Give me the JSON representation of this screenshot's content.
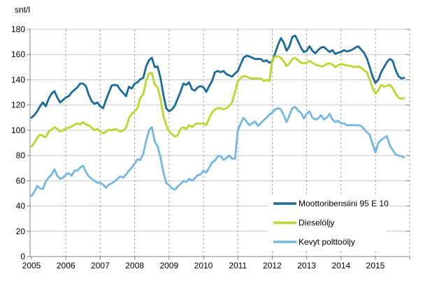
{
  "chart_data": {
    "type": "line",
    "title": "",
    "ylabel": "snt/l",
    "xlabel": "",
    "ylim": [
      0,
      180
    ],
    "ytick_step": 20,
    "x_start": "2005-01",
    "x_freq": "monthly",
    "x_tick_years": [
      2005,
      2006,
      2007,
      2008,
      2009,
      2010,
      2011,
      2012,
      2013,
      2014,
      2015
    ],
    "grid": {
      "horizontal": "solid",
      "vertical": "dashed-yearly"
    },
    "legend_position": "inside-bottom-right",
    "axis_color": "#808080",
    "hgrid_color": "#c9c9c9",
    "vgrid_color": "#a6a6a6",
    "series": [
      {
        "name": "Moottoribensiini 95 E 10",
        "color": "#176a99",
        "values": [
          110,
          112,
          115,
          119,
          122,
          119,
          125,
          129,
          131,
          126,
          122,
          124,
          126,
          127,
          130,
          132,
          134,
          137,
          137,
          135,
          128,
          123,
          121,
          122,
          119,
          117.5,
          124,
          130,
          135.5,
          136,
          135.5,
          132,
          129.5,
          127,
          134.5,
          133,
          137,
          138,
          140.5,
          141.5,
          150.5,
          155.5,
          157.5,
          150,
          150.5,
          141.5,
          128.5,
          117.5,
          115,
          116.5,
          119.5,
          125,
          130.5,
          137,
          136,
          138,
          132.5,
          131.5,
          134,
          135,
          134,
          130.5,
          135,
          139,
          146,
          147,
          146,
          147,
          144.5,
          143.5,
          142.5,
          145,
          147,
          152.5,
          157.5,
          159,
          158.5,
          157.5,
          156.5,
          156.5,
          156.5,
          154.5,
          155.5,
          153.5,
          154.5,
          161,
          167.5,
          173,
          169.5,
          163,
          166.5,
          174,
          175,
          170.5,
          165.5,
          162,
          163,
          166.5,
          163,
          161,
          163.5,
          165.5,
          166,
          164,
          162,
          163.5,
          160.5,
          161.5,
          162,
          163.5,
          162.5,
          163,
          164,
          165.5,
          166.5,
          164,
          161.5,
          157,
          150,
          142.5,
          137.5,
          140,
          146,
          150,
          154,
          156.5,
          155,
          148,
          143,
          141,
          141.5
        ]
      },
      {
        "name": "Dieselöljy",
        "color": "#bdd62e",
        "values": [
          87,
          90,
          94,
          96.5,
          95.5,
          94.5,
          99,
          100.5,
          102.5,
          101,
          99,
          100,
          101.5,
          102,
          103,
          104.5,
          105.5,
          104.5,
          106.5,
          104.5,
          104,
          102,
          100,
          101,
          99,
          97.5,
          99,
          100.5,
          100,
          101,
          100.5,
          99,
          100,
          102,
          109.5,
          113,
          115,
          117.5,
          126,
          128.5,
          139,
          145,
          145.5,
          136,
          134,
          125,
          112,
          104,
          99,
          97,
          95,
          96,
          101,
          102.5,
          101,
          104,
          102.5,
          104.5,
          105.5,
          105,
          105.5,
          104,
          109.5,
          114,
          116.5,
          117.5,
          117.5,
          116.5,
          117.5,
          119.5,
          122,
          130.5,
          139,
          141.5,
          143,
          142.5,
          141.5,
          141,
          141,
          141,
          141,
          139,
          140,
          139,
          155.5,
          158.5,
          158.5,
          157.5,
          154.5,
          151,
          153,
          156.5,
          157.5,
          155.5,
          153.5,
          153,
          153.5,
          155,
          153.5,
          152,
          151.5,
          150.5,
          151,
          152.5,
          153,
          152,
          150,
          151.5,
          152.5,
          152,
          151.5,
          151,
          150.5,
          150,
          150.5,
          149.5,
          147.5,
          146,
          140,
          133.5,
          129,
          132,
          136,
          134.5,
          135.5,
          136,
          133.5,
          129,
          126,
          125,
          125.5
        ]
      },
      {
        "name": "Kevyt polttoöljy",
        "color": "#74b7e3",
        "values": [
          48,
          51,
          56,
          54,
          53.5,
          59.5,
          62.5,
          65,
          69,
          64,
          61.5,
          62.5,
          65,
          66,
          64,
          68,
          68,
          70.5,
          72,
          67,
          63.5,
          61.5,
          60,
          58.5,
          58.5,
          57,
          54.5,
          57,
          58,
          59.5,
          61.5,
          63.5,
          62.5,
          65,
          68,
          70.5,
          73.5,
          77,
          76.5,
          81.5,
          91.5,
          100,
          102.5,
          91,
          87.5,
          78.5,
          67,
          58.5,
          56.5,
          54,
          53,
          55.5,
          57.5,
          60,
          59,
          61.5,
          60,
          62,
          64.5,
          65,
          68,
          66.5,
          70.5,
          74.5,
          76,
          79.5,
          79.5,
          76.5,
          78,
          80,
          77.5,
          77.5,
          100,
          105.5,
          110,
          107,
          104,
          105.5,
          107,
          103.5,
          105.5,
          108,
          110,
          112.5,
          114,
          116.5,
          117.5,
          116.5,
          112,
          106.5,
          112,
          117.5,
          118.5,
          115.5,
          114,
          109.5,
          113,
          115,
          110,
          108.5,
          109.5,
          112,
          108.5,
          110,
          113,
          108.5,
          106.5,
          107.5,
          105.5,
          105.5,
          104,
          104,
          104,
          104,
          104,
          103.5,
          101,
          98.5,
          96.5,
          89,
          82.5,
          90,
          92.5,
          94,
          95.5,
          88,
          84.5,
          81,
          80,
          79.5,
          78.5
        ]
      }
    ]
  }
}
